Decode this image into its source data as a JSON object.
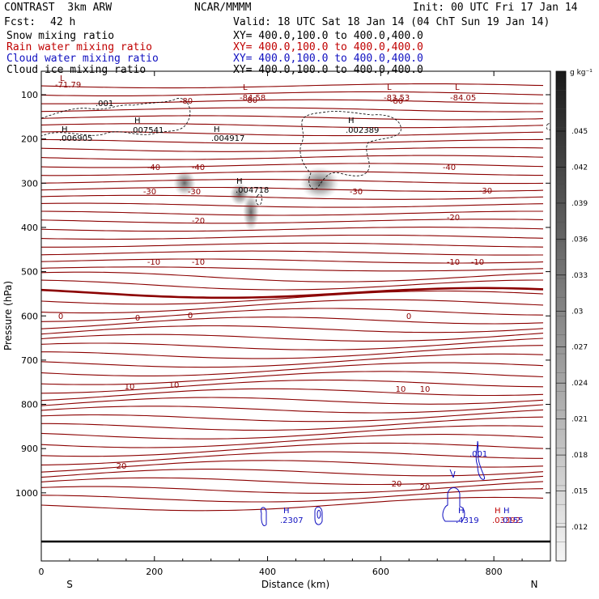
{
  "header": {
    "model": "CONTRAST  3km ARW",
    "org": "NCAR/MMMM",
    "init": "Init: 00 UTC Fri 17 Jan 14",
    "fcst_label": "Fcst:",
    "fcst_value": "42 h",
    "valid": "Valid: 18 UTC Sat 18 Jan 14 (04 ChT Sun 19 Jan 14)"
  },
  "fields": [
    {
      "name": "Snow mixing ratio",
      "xy": "XY= 400.0,100.0 to 400.0,400.0",
      "color": "#000000"
    },
    {
      "name": "Rain water mixing ratio",
      "xy": "XY= 400.0,100.0 to 400.0,400.0",
      "color": "#c00000"
    },
    {
      "name": "Cloud water mixing ratio",
      "xy": "XY= 400.0,100.0 to 400.0,400.0",
      "color": "#1010c0"
    },
    {
      "name": "Cloud ice mixing ratio",
      "xy": "XY= 400.0,100.0 to 400.0,400.0",
      "color": "#000000"
    }
  ],
  "chart_data": {
    "type": "contour",
    "xlabel": "Distance (km)",
    "ylabel": "Pressure (hPa)",
    "xlim": [
      0,
      900
    ],
    "ylim": [
      1050,
      50
    ],
    "x_ticks": [
      0,
      200,
      400,
      600,
      800
    ],
    "y_ticks": [
      100,
      200,
      300,
      400,
      500,
      600,
      700,
      800,
      900,
      1000
    ],
    "x_end_labels": {
      "left": "S",
      "right": "N"
    },
    "colorbar": {
      "unit": "g kg⁻¹",
      "ticks": [
        ".045",
        ".042",
        ".039",
        ".036",
        ".033",
        ".03",
        ".027",
        ".024",
        ".021",
        ".018",
        ".015",
        ".012"
      ]
    },
    "temperature_contours": [
      {
        "label": "-80",
        "label_pos": [
          [
            230,
            128
          ],
          [
            310,
            127
          ],
          [
            490,
            128
          ]
        ]
      },
      {
        "label": "-40",
        "label_pos": [
          [
            190,
            210
          ],
          [
            245,
            210
          ],
          [
            555,
            210
          ]
        ]
      },
      {
        "label": "-30",
        "label_pos": [
          [
            185,
            240
          ],
          [
            240,
            240
          ],
          [
            440,
            240
          ],
          [
            600,
            239
          ]
        ]
      },
      {
        "label": "-20",
        "label_pos": [
          [
            245,
            276
          ],
          [
            560,
            272
          ]
        ]
      },
      {
        "label": "-10",
        "label_pos": [
          [
            190,
            327
          ],
          [
            245,
            327
          ],
          [
            560,
            327
          ],
          [
            590,
            327
          ]
        ]
      },
      {
        "label": "0",
        "label_pos": [
          [
            75,
            394
          ],
          [
            170,
            396
          ],
          [
            235,
            393
          ],
          [
            505,
            394
          ]
        ]
      },
      {
        "label": "10",
        "label_pos": [
          [
            160,
            481
          ],
          [
            215,
            479
          ],
          [
            495,
            484
          ],
          [
            525,
            484
          ]
        ]
      },
      {
        "label": "20",
        "label_pos": [
          [
            150,
            579
          ],
          [
            490,
            601
          ],
          [
            525,
            605
          ]
        ]
      }
    ],
    "extrema_labels": [
      {
        "kind": "L",
        "value": "-71.79",
        "color": "#8b0000"
      },
      {
        "kind": "L",
        "value": "-84.58",
        "color": "#8b0000"
      },
      {
        "kind": "L",
        "value": "-83.53",
        "color": "#8b0000"
      },
      {
        "kind": "L",
        "value": "-84.05",
        "color": "#8b0000"
      },
      {
        "kind": "H",
        "value": ".001",
        "color": "#000000"
      },
      {
        "kind": "H",
        "value": ".006905",
        "color": "#000000"
      },
      {
        "kind": "H",
        "value": ".007541",
        "color": "#000000"
      },
      {
        "kind": "H",
        "value": ".004917",
        "color": "#000000"
      },
      {
        "kind": "H",
        "value": ".002389",
        "color": "#000000"
      },
      {
        "kind": "H",
        "value": ".004718",
        "color": "#000000"
      },
      {
        "kind": "H",
        "value": ".001",
        "color": "#1010c0"
      },
      {
        "kind": "H",
        "value": ".2307",
        "color": "#1010c0"
      },
      {
        "kind": "H",
        "value": ".4319",
        "color": "#1010c0"
      },
      {
        "kind": "H",
        "value": ".03392",
        "color": "#c00000"
      },
      {
        "kind": "H",
        "value": ".0155",
        "color": "#1010c0"
      }
    ]
  }
}
